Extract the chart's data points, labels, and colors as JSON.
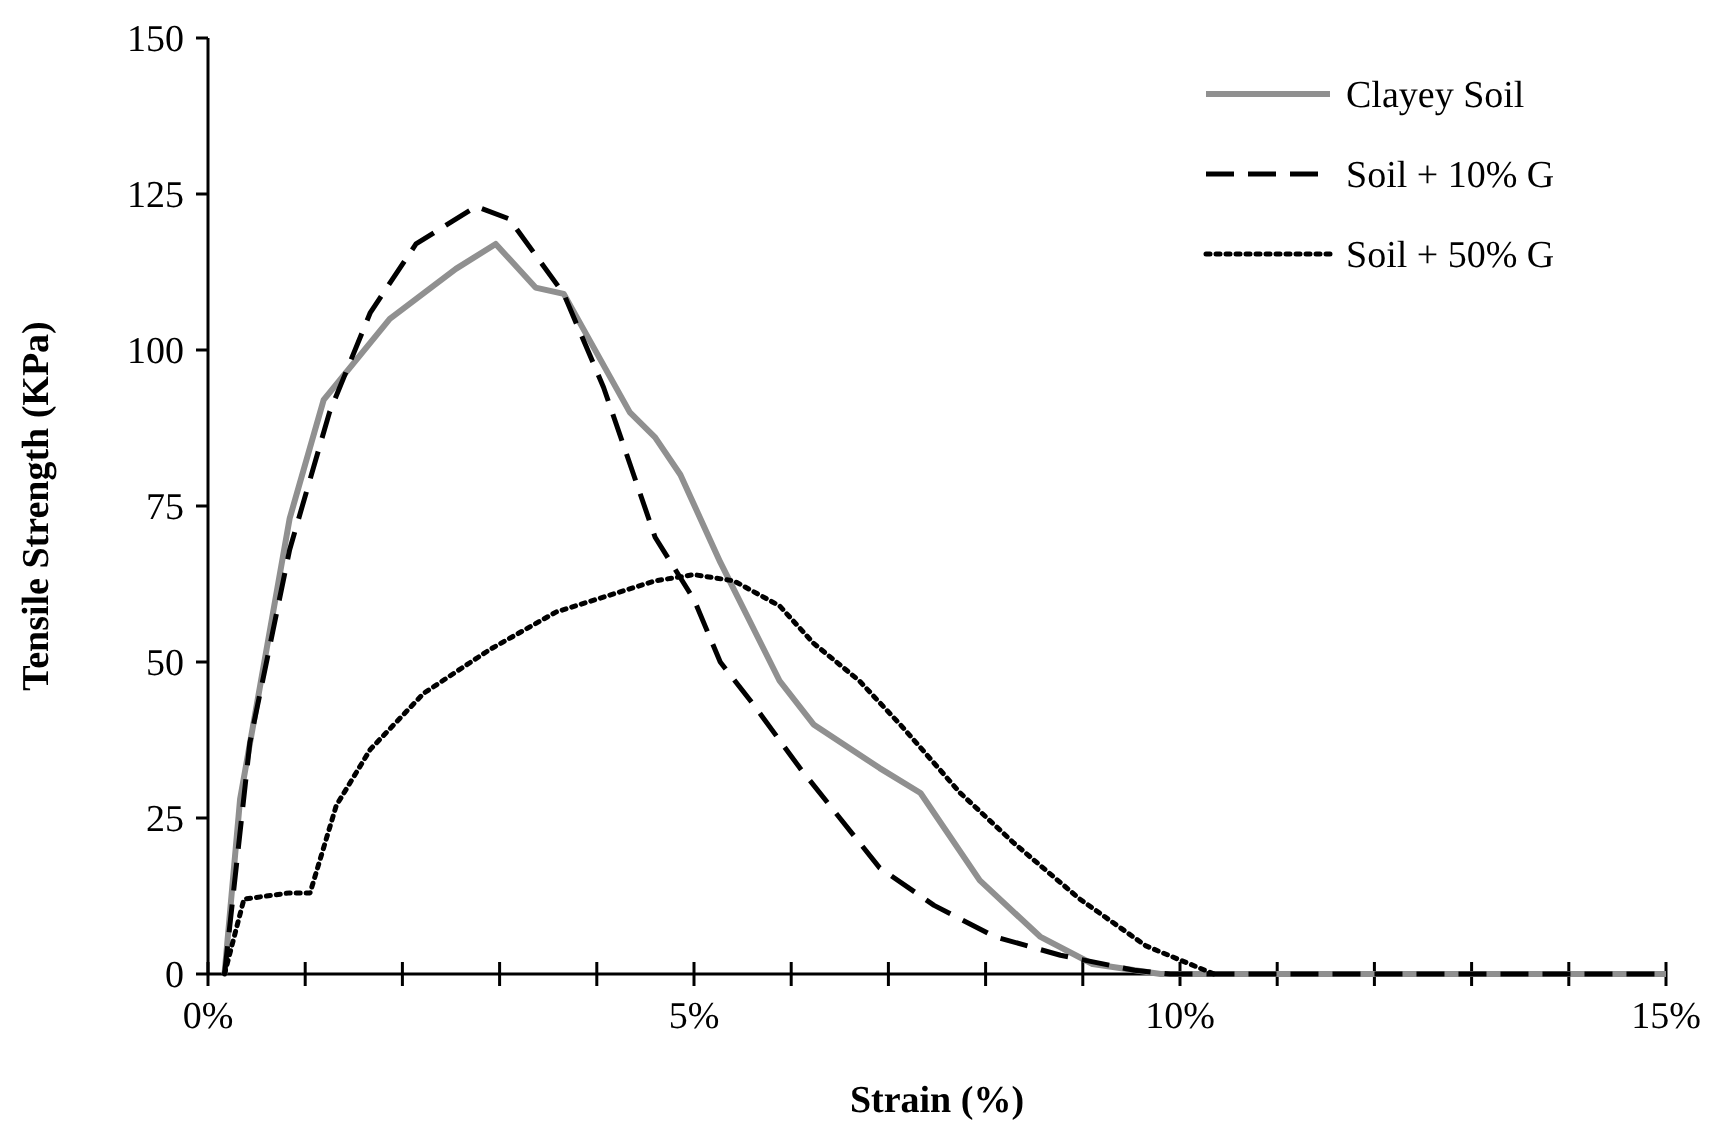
{
  "chart_data": {
    "type": "line",
    "xlabel": "Strain (%)",
    "ylabel": "Tensile Strength (KPa)",
    "xlim": [
      0,
      15
    ],
    "ylim": [
      0,
      150
    ],
    "xticks": [
      {
        "value": 0,
        "label": "0%"
      },
      {
        "value": 1,
        "label": null
      },
      {
        "value": 2,
        "label": null
      },
      {
        "value": 3,
        "label": null
      },
      {
        "value": 4,
        "label": null
      },
      {
        "value": 5,
        "label": "5%"
      },
      {
        "value": 6,
        "label": null
      },
      {
        "value": 7,
        "label": null
      },
      {
        "value": 8,
        "label": null
      },
      {
        "value": 9,
        "label": null
      },
      {
        "value": 10,
        "label": "10%"
      },
      {
        "value": 11,
        "label": null
      },
      {
        "value": 12,
        "label": null
      },
      {
        "value": 13,
        "label": null
      },
      {
        "value": 14,
        "label": null
      },
      {
        "value": 15,
        "label": "15%"
      }
    ],
    "yticks": [
      0,
      25,
      50,
      75,
      100,
      125,
      150
    ],
    "grid": false,
    "legend": "top right",
    "marker": "none",
    "series": [
      {
        "name": "Clayey Soil",
        "color": "#909090",
        "line_style": "solid",
        "x": [
          0.17,
          0.33,
          0.84,
          1.19,
          1.87,
          2.55,
          2.96,
          3.37,
          3.66,
          4.34,
          4.6,
          4.86,
          5.27,
          5.88,
          6.23,
          6.91,
          7.33,
          7.94,
          8.56,
          9.1,
          9.8,
          10,
          15
        ],
        "values": [
          0,
          28,
          73,
          92,
          105,
          113,
          117,
          110,
          109,
          90,
          86,
          80,
          66,
          47,
          40,
          33,
          29,
          15,
          6,
          1.6,
          0,
          0,
          0
        ]
      },
      {
        "name": "Soil + 10% G",
        "color": "#000000",
        "line_style": "dashed",
        "x": [
          0.17,
          0.43,
          0.84,
          1.25,
          1.67,
          2.14,
          2.76,
          3.1,
          3.66,
          4.07,
          4.6,
          5.0,
          5.27,
          5.62,
          6.09,
          6.5,
          6.91,
          7.47,
          8.09,
          8.77,
          9.53,
          9.9,
          15
        ],
        "values": [
          0,
          37,
          68,
          90,
          106,
          117,
          123,
          121,
          109,
          94,
          70,
          60,
          50,
          43,
          33,
          25,
          17,
          11,
          6,
          3,
          0.6,
          0,
          0
        ]
      },
      {
        "name": "Soil + 50% G",
        "color": "#000000",
        "line_style": "dotted",
        "x": [
          0.17,
          0.37,
          0.84,
          1.05,
          1.32,
          1.67,
          2.22,
          2.9,
          3.58,
          4.6,
          5.0,
          5.41,
          5.88,
          6.23,
          6.7,
          7.12,
          7.74,
          8.29,
          8.97,
          9.65,
          10.35
        ],
        "values": [
          0,
          12,
          13,
          13,
          27,
          36,
          45,
          52,
          58,
          63,
          64,
          63,
          59,
          53,
          47,
          40,
          29,
          21,
          12,
          4.5,
          0
        ]
      }
    ]
  }
}
